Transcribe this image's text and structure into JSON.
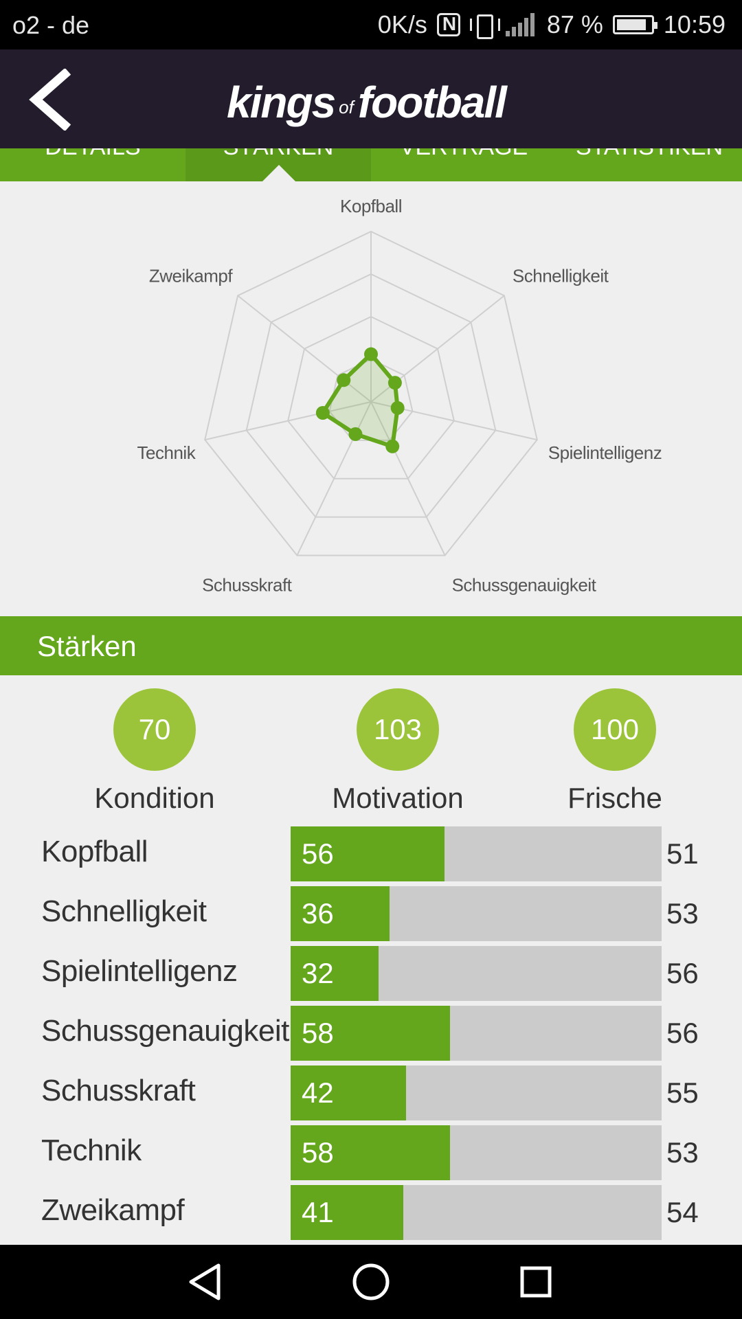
{
  "status_bar": {
    "carrier": "o2 - de",
    "speed": "0K/s",
    "battery": "87 %",
    "battery_level": 0.87,
    "time": "10:59"
  },
  "header": {
    "logo_part1": "kings",
    "logo_of": "of",
    "logo_part2": "football"
  },
  "tabs": [
    {
      "label": "DETAILS"
    },
    {
      "label": "STÄRKEN",
      "active": true
    },
    {
      "label": "VERTRÄGE"
    },
    {
      "label": "STATISTIKEN"
    }
  ],
  "chart_data": {
    "type": "radar",
    "axes": [
      "Kopfball",
      "Schnelligkeit",
      "Spielintelligenz",
      "Schussgenauigkeit",
      "Schusskraft",
      "Technik",
      "Zweikampf"
    ],
    "values": [
      56,
      36,
      32,
      58,
      42,
      58,
      41
    ],
    "range": [
      0,
      200
    ],
    "rings": 4,
    "colors": {
      "series": "#64a71c",
      "fill": "rgba(100,167,28,0.18)",
      "grid": "#cfcfcf"
    }
  },
  "section_title": "Stärken",
  "stats": [
    {
      "value": "70",
      "label": "Kondition"
    },
    {
      "value": "103",
      "label": "Motivation"
    },
    {
      "value": "100",
      "label": "Frische"
    }
  ],
  "attributes": {
    "max": 135,
    "items": [
      {
        "name": "Kopfball",
        "value": 56,
        "compare": "51"
      },
      {
        "name": "Schnelligkeit",
        "value": 36,
        "compare": "53"
      },
      {
        "name": "Spielintelligenz",
        "value": 32,
        "compare": "56"
      },
      {
        "name": "Schussgenauigkeit",
        "value": 58,
        "compare": "56"
      },
      {
        "name": "Schusskraft",
        "value": 42,
        "compare": "55"
      },
      {
        "name": "Technik",
        "value": 58,
        "compare": "53"
      },
      {
        "name": "Zweikampf",
        "value": 41,
        "compare": "54"
      }
    ]
  },
  "nav": {
    "back_icon": "triangle-back-icon",
    "home_icon": "circle-home-icon",
    "recents_icon": "square-recents-icon"
  }
}
